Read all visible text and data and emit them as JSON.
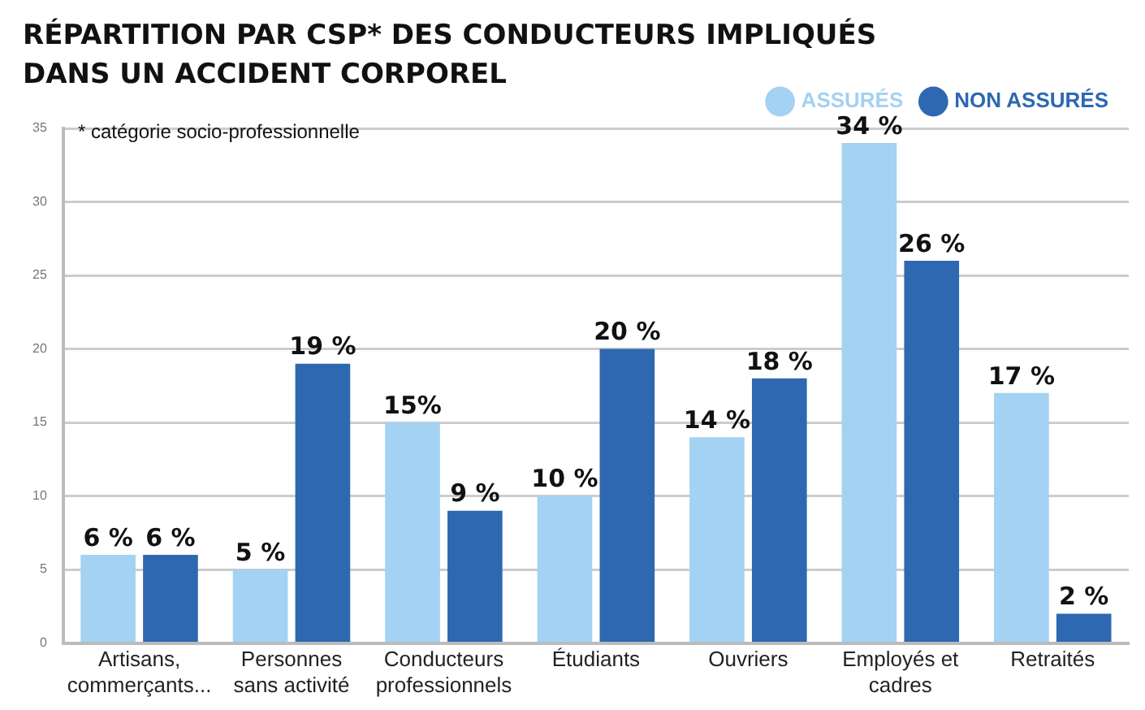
{
  "chart_data": {
    "type": "bar",
    "title": "RÉPARTITION PAR CSP* DES CONDUCTEURS IMPLIQUÉS DANS UN ACCIDENT CORPOREL",
    "annotations": [
      "* catégorie socio-professionnelle"
    ],
    "categories": [
      "Artisans, commerçants...",
      "Personnes sans activité",
      "Conducteurs professionnels",
      "Étudiants",
      "Ouvriers",
      "Employés et cadres",
      "Retraités"
    ],
    "series": [
      {
        "name": "ASSURÉS",
        "color": "#a3d2f2",
        "values": [
          6,
          5,
          15,
          10,
          14,
          34,
          17
        ],
        "value_labels": [
          "6 %",
          "5 %",
          "15%",
          "10 %",
          "14 %",
          "34 %",
          "17 %"
        ]
      },
      {
        "name": "NON ASSURÉS",
        "color": "#2e68b0",
        "values": [
          6,
          19,
          9,
          20,
          18,
          26,
          2
        ],
        "value_labels": [
          "6 %",
          "19 %",
          "9 %",
          "20 %",
          "18 %",
          "26 %",
          "2 %"
        ]
      }
    ],
    "ylim": [
      0,
      35
    ],
    "yticks": [
      0,
      5,
      10,
      15,
      20,
      25,
      30,
      35
    ],
    "grid": "y",
    "legend": "top right"
  }
}
